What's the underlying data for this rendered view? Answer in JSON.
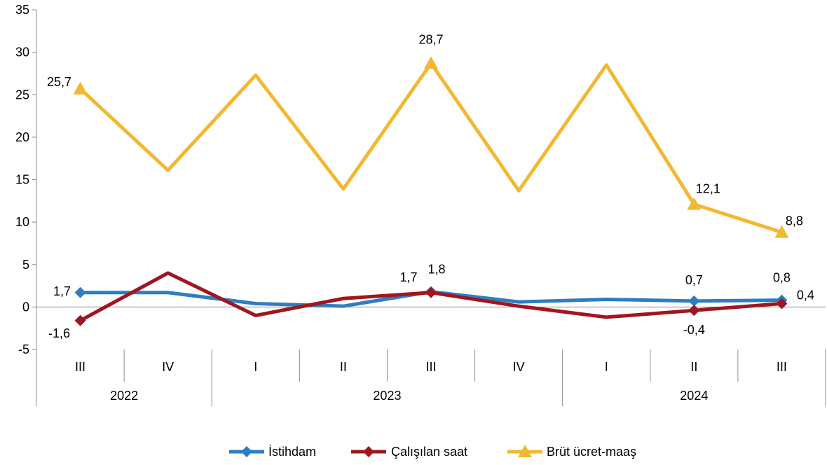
{
  "chart_data": {
    "type": "line",
    "categories": [
      "III",
      "IV",
      "I",
      "II",
      "III",
      "IV",
      "I",
      "II",
      "III"
    ],
    "year_groups": [
      {
        "label": "2022",
        "start": 0,
        "end": 1
      },
      {
        "label": "2023",
        "start": 2,
        "end": 5
      },
      {
        "label": "2024",
        "start": 6,
        "end": 8
      }
    ],
    "ylim": [
      -5,
      35
    ],
    "yticks": [
      -5,
      0,
      5,
      10,
      15,
      20,
      25,
      30,
      35
    ],
    "grid": false,
    "legend_position": "bottom",
    "series": [
      {
        "name": "İstihdam",
        "color": "#2e7ebf",
        "marker": "diamond",
        "values": [
          1.7,
          1.7,
          0.4,
          0.1,
          1.8,
          0.6,
          0.9,
          0.7,
          0.8
        ],
        "labels": [
          "1,7",
          "",
          "",
          "",
          "1,8",
          "",
          "",
          "0,7",
          "0,8"
        ]
      },
      {
        "name": "Çalışılan saat",
        "color": "#a0161e",
        "marker": "diamond",
        "values": [
          -1.6,
          4.0,
          -1.0,
          1.0,
          1.7,
          0.1,
          -1.2,
          -0.4,
          0.4
        ],
        "labels": [
          "-1,6",
          "",
          "",
          "",
          "1,7",
          "",
          "",
          "-0,4",
          "0,4"
        ]
      },
      {
        "name": "Brüt ücret-maaş",
        "color": "#f2b830",
        "marker": "triangle",
        "values": [
          25.7,
          16.1,
          27.3,
          13.9,
          28.7,
          13.7,
          28.5,
          12.1,
          8.8
        ],
        "labels": [
          "25,7",
          "",
          "",
          "",
          "28,7",
          "",
          "",
          "12,1",
          "8,8"
        ]
      }
    ]
  }
}
